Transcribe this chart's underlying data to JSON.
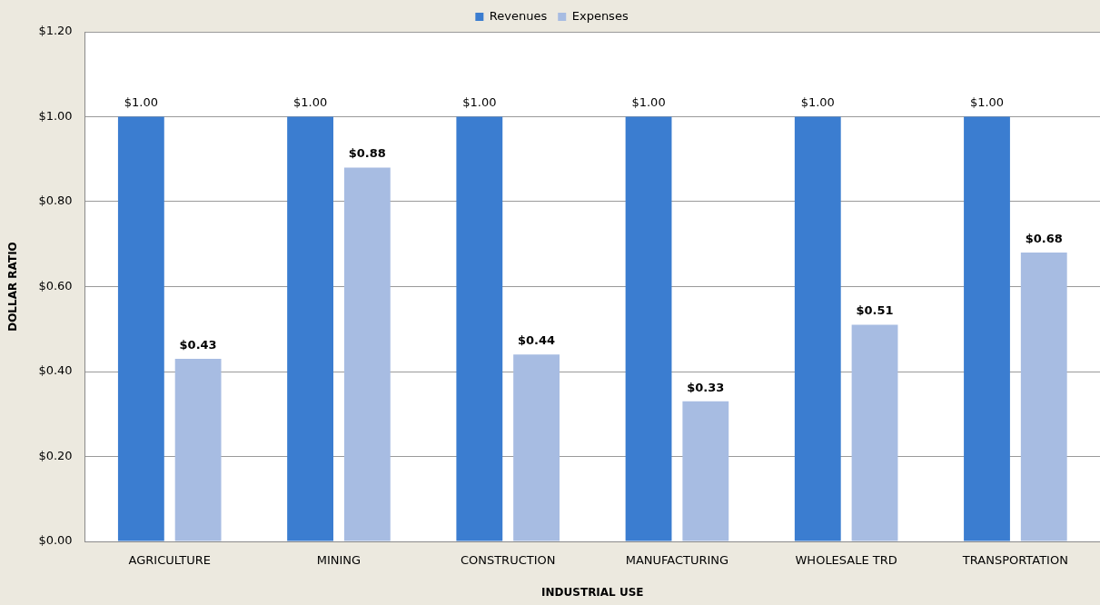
{
  "chart_data": {
    "type": "bar",
    "xlabel": "INDUSTRIAL USE",
    "ylabel": "DOLLAR RATIO",
    "categories": [
      "AGRICULTURE",
      "MINING",
      "CONSTRUCTION",
      "MANUFACTURING",
      "WHOLESALE TRD",
      "TRANSPORTATION"
    ],
    "series": [
      {
        "name": "Revenues",
        "color": "#3b7dd0",
        "values": [
          1,
          1,
          1,
          1,
          1,
          1
        ],
        "value_labels": [
          "$1.00",
          "$1.00",
          "$1.00",
          "$1.00",
          "$1.00",
          "$1.00"
        ]
      },
      {
        "name": "Expenses",
        "color": "#a7bce2",
        "values": [
          0.43,
          0.88,
          0.44,
          0.33,
          0.51,
          0.68
        ],
        "value_labels": [
          "$0.43",
          "$0.88",
          "$0.44",
          "$0.33",
          "$0.51",
          "$0.68"
        ]
      }
    ],
    "ylim": [
      0,
      1.2
    ],
    "yticks": [
      {
        "value": 0,
        "label": "$0.00"
      },
      {
        "value": 0.2,
        "label": "$0.20"
      },
      {
        "value": 0.4,
        "label": "$0.40"
      },
      {
        "value": 0.6,
        "label": "$0.60"
      },
      {
        "value": 0.8,
        "label": "$0.80"
      },
      {
        "value": 1,
        "label": "$1.00"
      },
      {
        "value": 1.2,
        "label": "$1.20"
      }
    ],
    "grid": "y",
    "legend": "top"
  }
}
